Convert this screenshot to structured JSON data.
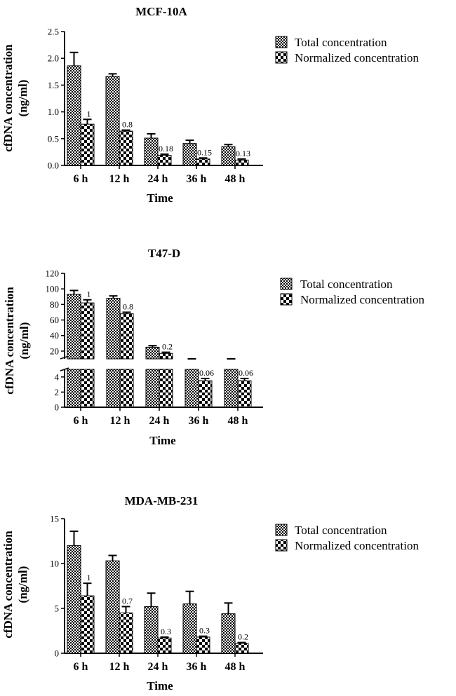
{
  "colors": {
    "ink": "#000000",
    "background": "#ffffff"
  },
  "chart_data": [
    {
      "type": "bar",
      "title": "MCF-10A",
      "xlabel": "Time",
      "ylabel_line1": "cfDNA concentration",
      "ylabel_line2": "(ng/ml)",
      "categories": [
        "6 h",
        "12 h",
        "24 h",
        "36 h",
        "48 h"
      ],
      "ylim": [
        0,
        2.5
      ],
      "yticks": [
        0,
        0.5,
        1.0,
        1.5,
        2.0,
        2.5
      ],
      "ytick_labels": [
        "0.0",
        "0.5",
        "1.0",
        "1.5",
        "2.0",
        "2.5"
      ],
      "series": [
        {
          "name": "Total concentration",
          "pattern": "dense",
          "values": [
            1.86,
            1.66,
            0.51,
            0.41,
            0.35
          ],
          "errors": [
            0.25,
            0.05,
            0.08,
            0.06,
            0.04
          ]
        },
        {
          "name": "Normalized concentration",
          "pattern": "coarse",
          "values": [
            0.77,
            0.64,
            0.19,
            0.12,
            0.1
          ],
          "errors": [
            0.09,
            0.02,
            0.02,
            0.02,
            0.02
          ]
        }
      ],
      "annotations": [
        "1",
        "0.8",
        "0.18",
        "0.15",
        "0.13"
      ],
      "legend": [
        "Total concentration",
        "Normalized concentration"
      ]
    },
    {
      "type": "bar",
      "title": "T47-D",
      "xlabel": "Time",
      "ylabel_line1": "cfDNA concentration",
      "ylabel_line2": "(ng/ml)",
      "categories": [
        "6 h",
        "12 h",
        "24 h",
        "36 h",
        "48 h"
      ],
      "ylim": [
        0,
        120
      ],
      "axis_break": [
        5,
        10
      ],
      "yticks": [
        0,
        2,
        4,
        20,
        40,
        60,
        80,
        100,
        120
      ],
      "ytick_labels": [
        "0",
        "2",
        "4",
        "20",
        "40",
        "60",
        "80",
        "100",
        "120"
      ],
      "series": [
        {
          "name": "Total concentration",
          "pattern": "dense",
          "values": [
            93,
            88,
            25,
            5.5,
            7
          ],
          "errors": [
            5,
            3,
            2,
            0.5,
            0.8
          ]
        },
        {
          "name": "Normalized concentration",
          "pattern": "coarse",
          "values": [
            82,
            68,
            17,
            3.5,
            3.5
          ],
          "errors": [
            4,
            2,
            1.5,
            0.3,
            0.3
          ]
        }
      ],
      "annotations": [
        "1",
        "0.8",
        "0.2",
        "0.06",
        "0.06"
      ],
      "legend": [
        "Total concentration",
        "Normalized concentration"
      ]
    },
    {
      "type": "bar",
      "title": "MDA-MB-231",
      "xlabel": "Time",
      "ylabel_line1": "cfDNA concentration",
      "ylabel_line2": "(ng/ml)",
      "categories": [
        "6 h",
        "12 h",
        "24 h",
        "36 h",
        "48 h"
      ],
      "ylim": [
        0,
        15
      ],
      "yticks": [
        0,
        5,
        10,
        15
      ],
      "ytick_labels": [
        "0",
        "5",
        "10",
        "15"
      ],
      "series": [
        {
          "name": "Total concentration",
          "pattern": "dense",
          "values": [
            12.0,
            10.3,
            5.2,
            5.5,
            4.4
          ],
          "errors": [
            1.6,
            0.6,
            1.5,
            1.4,
            1.2
          ]
        },
        {
          "name": "Normalized concentration",
          "pattern": "coarse",
          "values": [
            6.4,
            4.5,
            1.7,
            1.8,
            1.1
          ],
          "errors": [
            1.4,
            0.7,
            0.1,
            0.1,
            0.1
          ]
        }
      ],
      "annotations": [
        "1",
        "0.7",
        "0.3",
        "0.3",
        "0.2"
      ],
      "legend": [
        "Total concentration",
        "Normalized concentration"
      ]
    }
  ]
}
